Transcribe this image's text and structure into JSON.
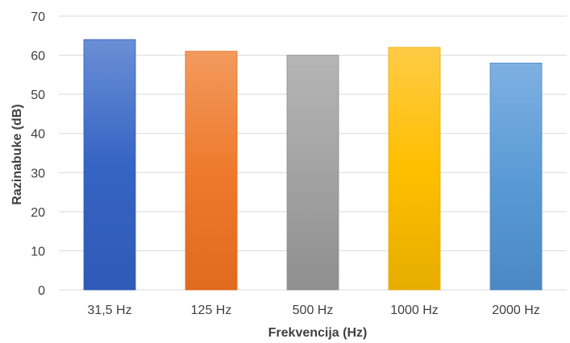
{
  "chart_data": {
    "type": "bar",
    "categories": [
      "31,5 Hz",
      "125 Hz",
      "500 Hz",
      "1000 Hz",
      "2000 Hz"
    ],
    "values": [
      64,
      61,
      60,
      62,
      58
    ],
    "title": "",
    "xlabel": "Frekvencija (Hz)",
    "ylabel": "Razinabuke (dB)",
    "ylim": [
      0,
      70
    ],
    "yticks": [
      0,
      10,
      20,
      30,
      40,
      50,
      60,
      70
    ],
    "grid": true,
    "legend": "none",
    "bar_colors": [
      [
        "#6b8fd6",
        "#3664c4",
        "#2f5bb7"
      ],
      [
        "#f29a5e",
        "#ef7a2c",
        "#e06a1e"
      ],
      [
        "#b5b5b5",
        "#a3a3a3",
        "#8f8f8f"
      ],
      [
        "#ffcb45",
        "#ffbf00",
        "#e6ad00"
      ],
      [
        "#7eb0e2",
        "#5b9bd5",
        "#4a89c4"
      ]
    ]
  }
}
